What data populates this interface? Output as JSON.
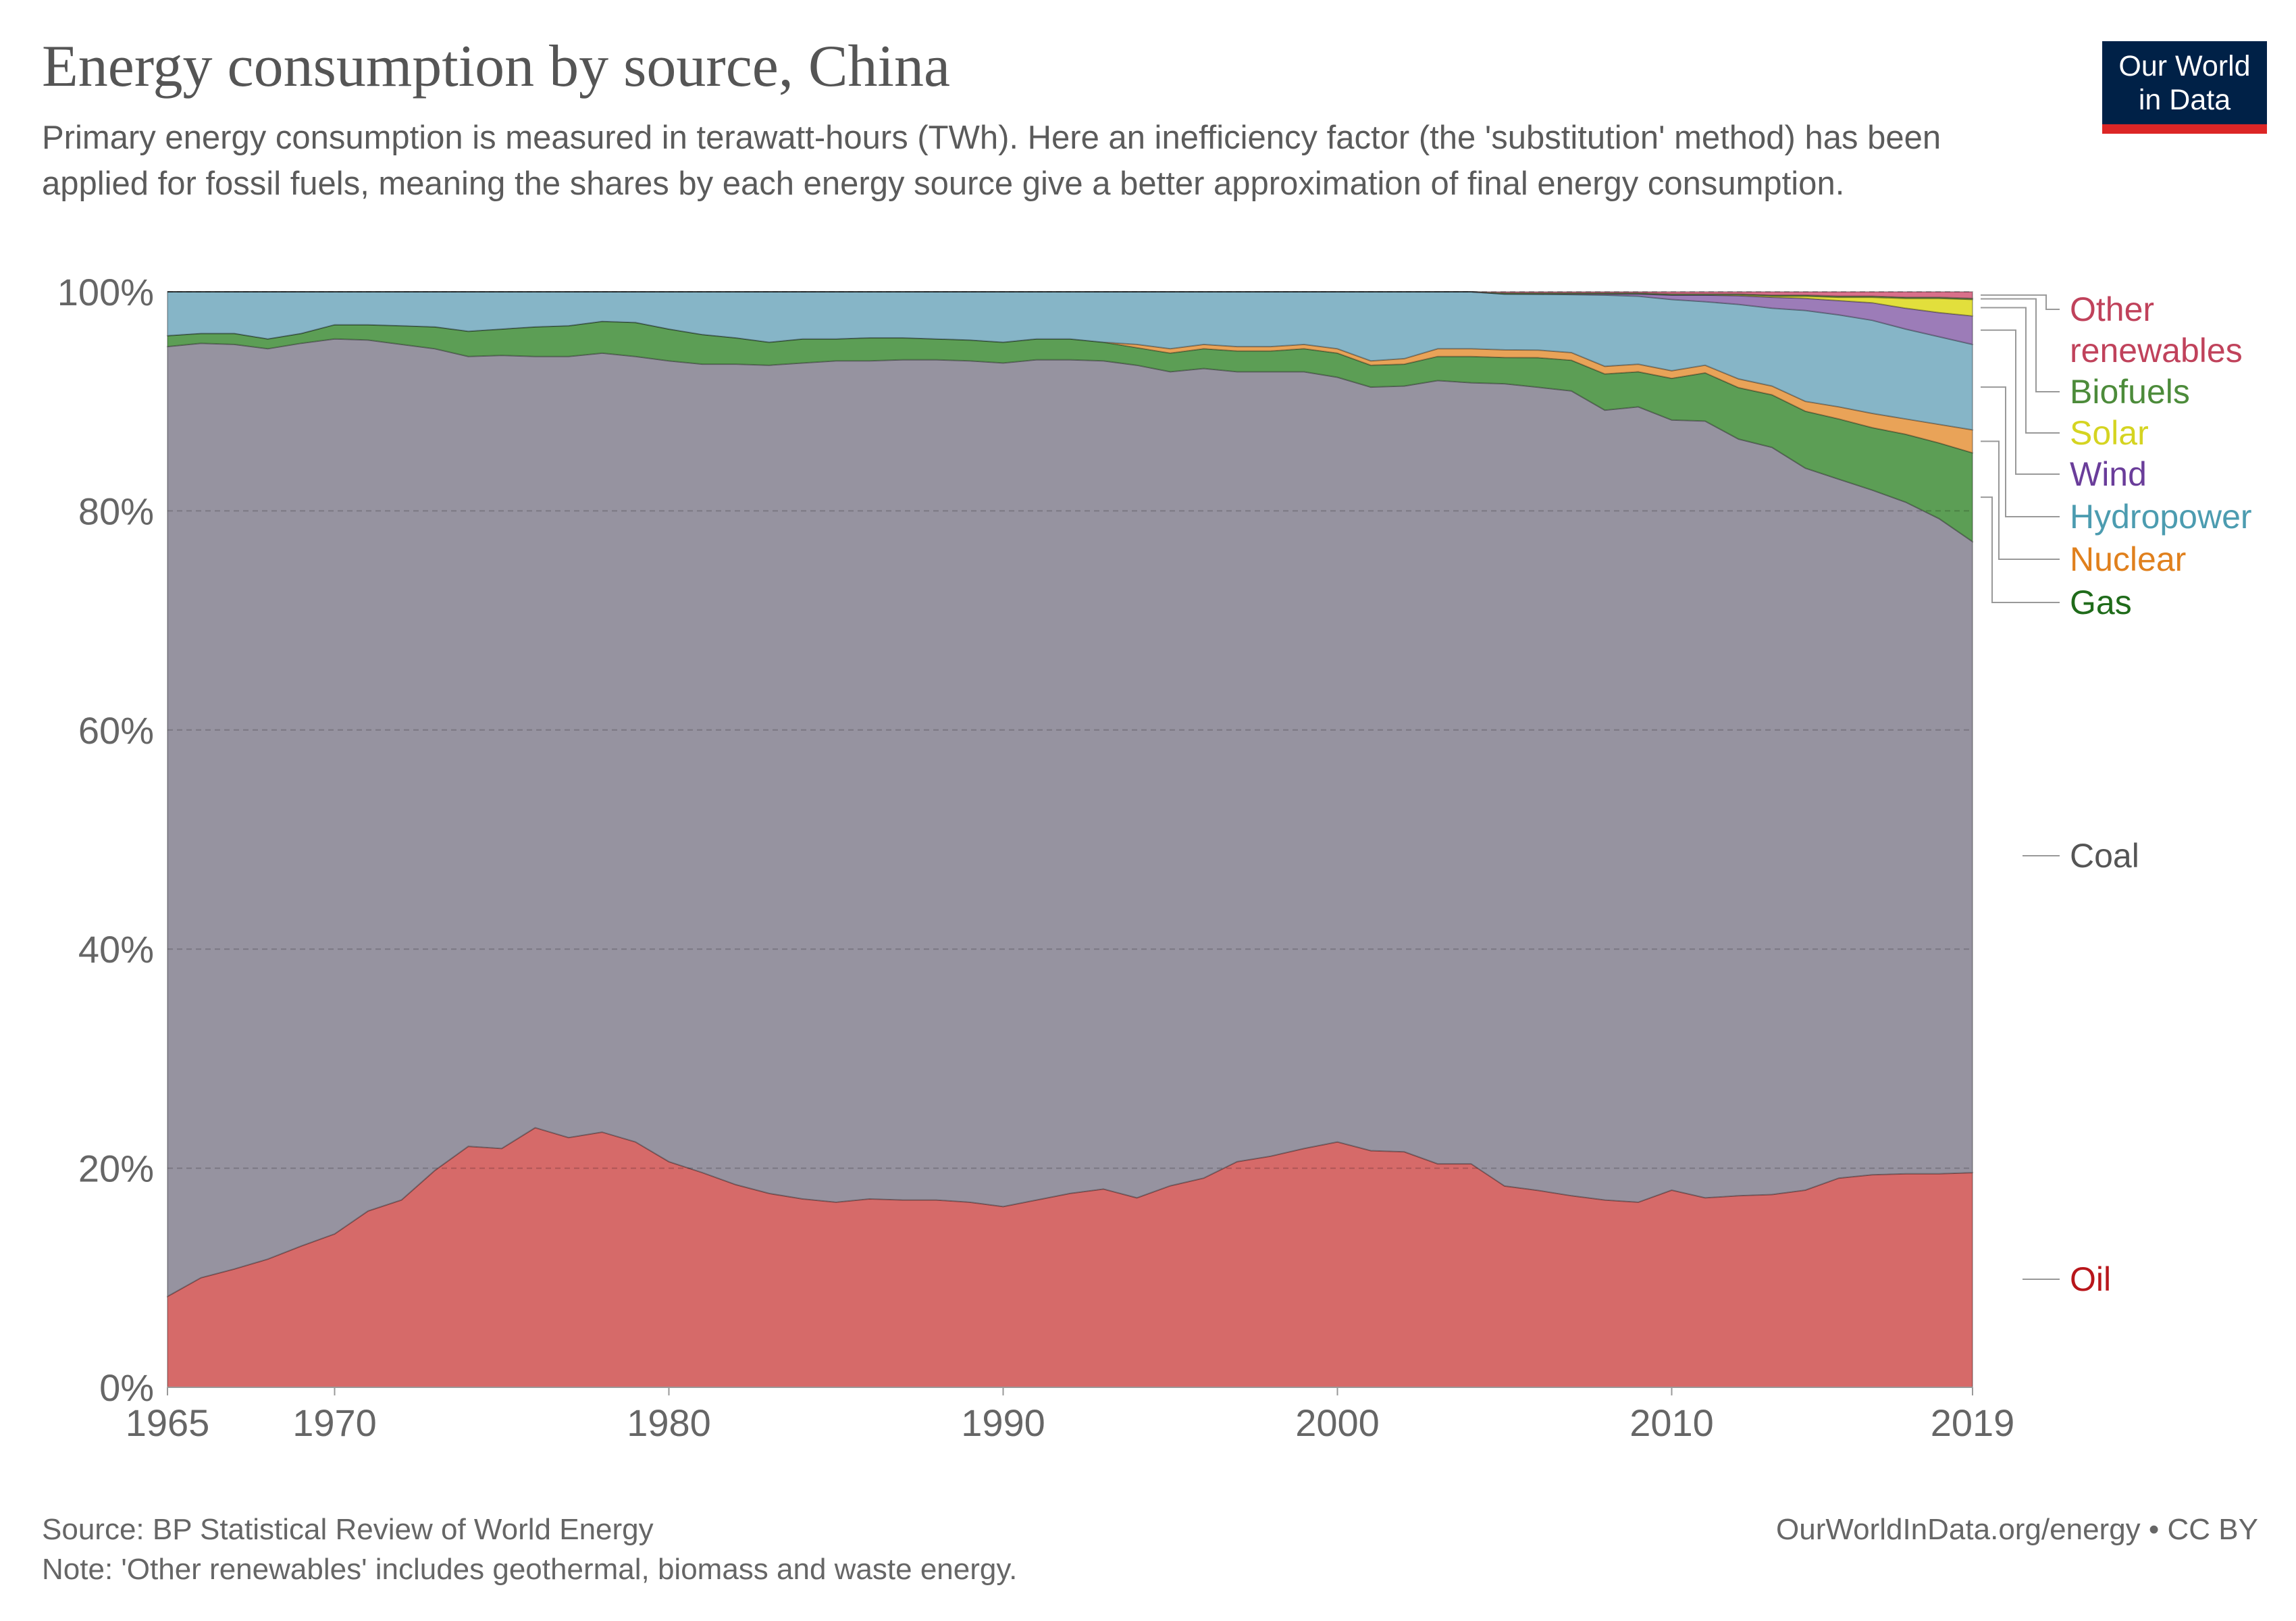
{
  "header": {
    "title": "Energy consumption by source, China",
    "subtitle": "Primary energy consumption is measured in terawatt-hours (TWh). Here an inefficiency factor (the 'substitution' method) has been applied for fossil fuels, meaning the shares by each energy source give a better approximation of final energy consumption.",
    "logo_line1": "Our World",
    "logo_line2": "in Data"
  },
  "footer": {
    "source": "Source: BP Statistical Review of World Energy",
    "note": "Note: 'Other renewables' includes geothermal, biomass and waste energy.",
    "credit": "OurWorldInData.org/energy • CC BY"
  },
  "chart_data": {
    "type": "area",
    "stacked": true,
    "relative": true,
    "ylim": [
      0,
      100
    ],
    "y_ticks": [
      "0%",
      "20%",
      "40%",
      "60%",
      "80%",
      "100%"
    ],
    "x_ticks": [
      "1965",
      "1970",
      "1980",
      "1990",
      "2000",
      "2010",
      "2019"
    ],
    "grid": "horizontal dashed",
    "legend": "right, inline labels",
    "years": [
      1965,
      1966,
      1967,
      1968,
      1969,
      1970,
      1971,
      1972,
      1973,
      1974,
      1975,
      1976,
      1977,
      1978,
      1979,
      1980,
      1981,
      1982,
      1983,
      1984,
      1985,
      1986,
      1987,
      1988,
      1989,
      1990,
      1991,
      1992,
      1993,
      1994,
      1995,
      1996,
      1997,
      1998,
      1999,
      2000,
      2001,
      2002,
      2003,
      2004,
      2005,
      2006,
      2007,
      2008,
      2009,
      2010,
      2011,
      2012,
      2013,
      2014,
      2015,
      2016,
      2017,
      2018,
      2019
    ],
    "series": [
      {
        "name": "Oil",
        "color": "#d66a69",
        "label_color": "#b8161b",
        "values": [
          8.3,
          10,
          10.8,
          11.7,
          12.9,
          14,
          16.1,
          17.1,
          19.8,
          22,
          21.8,
          23.7,
          22.8,
          23.3,
          22.4,
          20.6,
          19.6,
          18.5,
          17.7,
          17.2,
          16.9,
          17.2,
          17.1,
          17.1,
          16.9,
          16.5,
          17.1,
          17.7,
          18.1,
          17.3,
          18.4,
          19.1,
          20.6,
          21.1,
          21.8,
          22.4,
          21.6,
          21.5,
          20.4,
          20.4,
          18.4,
          18,
          17.5,
          17.1,
          16.9,
          18,
          17.3,
          17.5,
          17.6,
          18,
          19.1,
          19.4,
          19.5,
          19.5,
          19.6
        ]
      },
      {
        "name": "Coal",
        "color": "#9693a0",
        "label_color": "#555555",
        "values": [
          86.7,
          85.3,
          84.4,
          83.1,
          82.4,
          81.7,
          79.5,
          78.1,
          75,
          72.1,
          72.4,
          70.4,
          71.3,
          71.1,
          71.7,
          73.1,
          73.8,
          74.9,
          75.6,
          76.3,
          76.8,
          76.5,
          76.7,
          76.7,
          76.8,
          77,
          76.7,
          76.1,
          75.6,
          76,
          74.3,
          73.9,
          72.1,
          71.6,
          70.9,
          69.8,
          69.7,
          69.9,
          71.5,
          71.3,
          73.3,
          73.4,
          73.5,
          72.1,
          72.6,
          70.3,
          70.9,
          69.1,
          68.2,
          65.9,
          63.8,
          62.5,
          61.3,
          59.8,
          57.6
        ]
      },
      {
        "name": "Gas",
        "color": "#5c9e55",
        "label_color": "#1f6b1a",
        "values": [
          1,
          0.9,
          1,
          0.9,
          0.9,
          1.3,
          1.4,
          1.7,
          2,
          2.3,
          2.4,
          2.7,
          2.8,
          2.9,
          3.1,
          2.9,
          2.7,
          2.4,
          2.1,
          2.2,
          2,
          2.1,
          2,
          1.9,
          1.9,
          1.9,
          1.9,
          1.9,
          1.7,
          1.6,
          1.7,
          1.8,
          1.9,
          1.9,
          2.1,
          2.2,
          2,
          2,
          2.2,
          2.4,
          2.4,
          2.7,
          2.8,
          3.3,
          3.2,
          3.8,
          4.4,
          4.7,
          4.8,
          5.2,
          5.5,
          5.7,
          6.2,
          6.9,
          8.1
        ]
      },
      {
        "name": "Nuclear",
        "color": "#e9a358",
        "label_color": "#e0801d",
        "values": [
          0,
          0,
          0,
          0,
          0,
          0,
          0,
          0,
          0,
          0,
          0,
          0,
          0,
          0,
          0,
          0,
          0,
          0,
          0,
          0,
          0,
          0,
          0,
          0,
          0,
          0,
          0,
          0,
          0,
          0.3,
          0.4,
          0.4,
          0.4,
          0.4,
          0.4,
          0.4,
          0.4,
          0.5,
          0.7,
          0.7,
          0.7,
          0.7,
          0.7,
          0.7,
          0.7,
          0.7,
          0.7,
          0.8,
          0.8,
          0.9,
          1.1,
          1.3,
          1.4,
          1.7,
          2.1
        ]
      },
      {
        "name": "Hydropower",
        "color": "#86b5c7",
        "label_color": "#4c9cb0",
        "values": [
          4,
          3.8,
          3.8,
          4.3,
          3.8,
          3,
          3,
          3.1,
          3.2,
          3.6,
          3.4,
          3.2,
          3.1,
          2.7,
          2.8,
          3.4,
          3.9,
          4.2,
          4.6,
          4.3,
          4.3,
          4.2,
          4.2,
          4.3,
          4.4,
          4.6,
          4.3,
          4.3,
          4.6,
          4.8,
          5.2,
          4.8,
          5,
          5,
          4.8,
          5.2,
          6.3,
          6.1,
          5.2,
          5.2,
          5.1,
          5.1,
          5.3,
          6.5,
          6.2,
          6.5,
          5.8,
          6.8,
          7.1,
          8.3,
          8.4,
          8.5,
          8.2,
          8,
          7.8
        ]
      },
      {
        "name": "Wind",
        "color": "#9c7cb8",
        "label_color": "#6a3d9a",
        "values": [
          0,
          0,
          0,
          0,
          0,
          0,
          0,
          0,
          0,
          0,
          0,
          0,
          0,
          0,
          0,
          0,
          0,
          0,
          0,
          0,
          0,
          0,
          0,
          0,
          0,
          0,
          0,
          0,
          0,
          0,
          0,
          0,
          0,
          0,
          0,
          0,
          0,
          0,
          0,
          0,
          0,
          0.02,
          0.05,
          0.1,
          0.2,
          0.4,
          0.6,
          0.8,
          1,
          1.1,
          1.3,
          1.6,
          1.9,
          2.2,
          2.6
        ]
      },
      {
        "name": "Solar",
        "color": "#e2df3c",
        "label_color": "#d5d421",
        "values": [
          0,
          0,
          0,
          0,
          0,
          0,
          0,
          0,
          0,
          0,
          0,
          0,
          0,
          0,
          0,
          0,
          0,
          0,
          0,
          0,
          0,
          0,
          0,
          0,
          0,
          0,
          0,
          0,
          0,
          0,
          0,
          0,
          0,
          0,
          0,
          0,
          0,
          0,
          0,
          0,
          0,
          0,
          0,
          0,
          0,
          0,
          0,
          0.05,
          0.1,
          0.2,
          0.3,
          0.5,
          0.9,
          1.3,
          1.5
        ]
      },
      {
        "name": "Biofuels",
        "color": "#6a9a4f",
        "label_color": "#4c8b3a",
        "values": [
          0,
          0,
          0,
          0,
          0,
          0,
          0,
          0,
          0,
          0,
          0,
          0,
          0,
          0,
          0,
          0,
          0,
          0,
          0,
          0,
          0,
          0,
          0,
          0,
          0,
          0,
          0,
          0,
          0,
          0,
          0,
          0,
          0,
          0,
          0,
          0,
          0,
          0,
          0,
          0,
          0.1,
          0.1,
          0.1,
          0.1,
          0.1,
          0.1,
          0.1,
          0.1,
          0.1,
          0.1,
          0.1,
          0.1,
          0.1,
          0.1,
          0.1
        ]
      },
      {
        "name": "Other renewables",
        "color": "#d9708a",
        "label_color": "#c0425b",
        "values": [
          0,
          0,
          0,
          0,
          0,
          0,
          0,
          0,
          0,
          0,
          0,
          0,
          0,
          0,
          0,
          0,
          0,
          0,
          0,
          0,
          0,
          0,
          0,
          0,
          0,
          0,
          0,
          0,
          0,
          0,
          0,
          0,
          0,
          0,
          0,
          0,
          0,
          0,
          0,
          0,
          0.1,
          0.1,
          0.1,
          0.1,
          0.1,
          0.2,
          0.2,
          0.2,
          0.3,
          0.3,
          0.4,
          0.4,
          0.5,
          0.5,
          0.6
        ]
      }
    ]
  }
}
